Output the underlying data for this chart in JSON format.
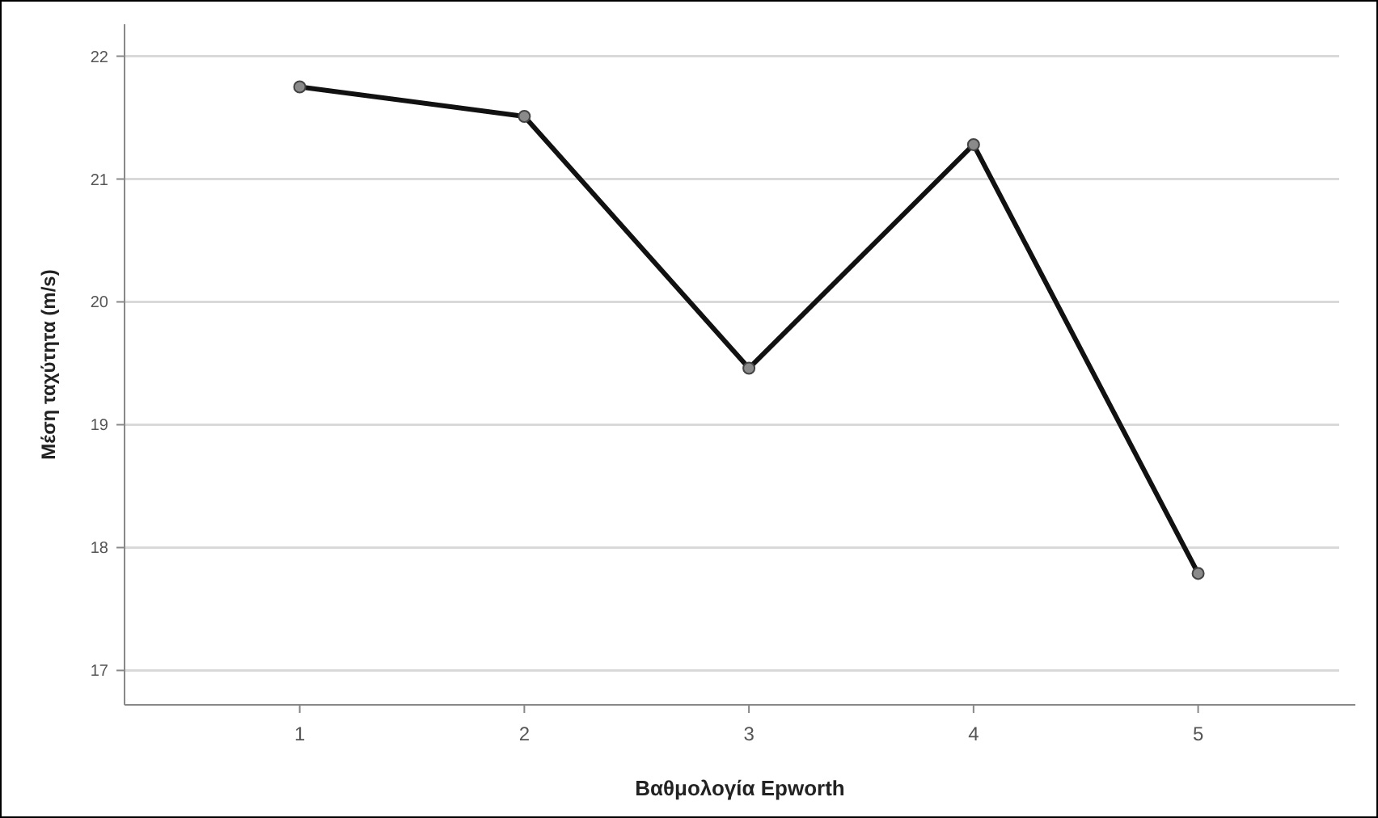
{
  "chart_data": {
    "type": "line",
    "xlabel": "Βαθμολογία Epworth",
    "ylabel": "Μέση ταχύτητα (m/s)",
    "x": [
      1,
      2,
      3,
      4,
      5
    ],
    "values": [
      21.75,
      21.51,
      19.46,
      21.28,
      17.79
    ],
    "color": "#111111",
    "marker": "circle",
    "line_style": "solid",
    "grid": "y",
    "xlim": [
      0.22,
      5.7
    ],
    "xticks": [
      1,
      2,
      3,
      4,
      5
    ],
    "ylim": [
      16.72,
      22.26
    ],
    "yticks": [
      17,
      18,
      19,
      20,
      21,
      22
    ]
  }
}
